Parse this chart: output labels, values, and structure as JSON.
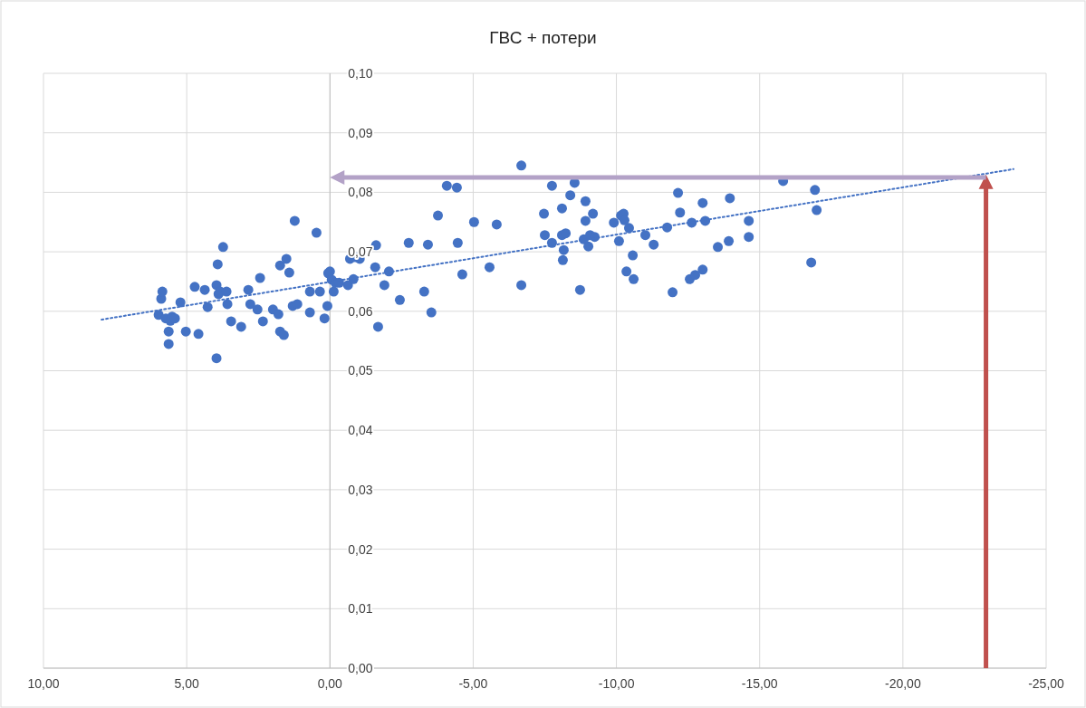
{
  "chart_data": {
    "type": "scatter",
    "title": "ГВС + потери",
    "marker": "circle",
    "grid": true,
    "xlim": [
      10,
      -25
    ],
    "ylim": [
      0,
      0.1
    ],
    "xticks": [
      {
        "value": 10,
        "label": "10,00"
      },
      {
        "value": 5,
        "label": "5,00"
      },
      {
        "value": 0,
        "label": "0,00"
      },
      {
        "value": -5,
        "label": "-5,00"
      },
      {
        "value": -10,
        "label": "-10,00"
      },
      {
        "value": -15,
        "label": "-15,00"
      },
      {
        "value": -20,
        "label": "-20,00"
      },
      {
        "value": -25,
        "label": "-25,00"
      }
    ],
    "yticks": [
      {
        "value": 0,
        "label": "0,00"
      },
      {
        "value": 0.01,
        "label": "0,01"
      },
      {
        "value": 0.02,
        "label": "0,02"
      },
      {
        "value": 0.03,
        "label": "0,03"
      },
      {
        "value": 0.04,
        "label": "0,04"
      },
      {
        "value": 0.05,
        "label": "0,05"
      },
      {
        "value": 0.06,
        "label": "0,06"
      },
      {
        "value": 0.07,
        "label": "0,07"
      },
      {
        "value": 0.08,
        "label": "0,08"
      },
      {
        "value": 0.09,
        "label": "0,09"
      },
      {
        "value": 0.1,
        "label": "0,10"
      }
    ],
    "series": [
      {
        "color": "#4472c4",
        "x": [
          5.98,
          5.89,
          5.85,
          5.73,
          5.63,
          5.63,
          5.57,
          5.51,
          5.41,
          5.22,
          5.03,
          4.72,
          4.59,
          4.37,
          4.27,
          3.96,
          3.92,
          3.96,
          3.89,
          3.83,
          3.73,
          3.61,
          3.58,
          3.45,
          3.1,
          2.85,
          2.78,
          2.53,
          2.44,
          2.34,
          1.99,
          1.8,
          1.74,
          1.74,
          1.61,
          1.52,
          1.42,
          1.23,
          1.3,
          1.14,
          0.7,
          0.7,
          0.47,
          0.35,
          0.19,
          0.09,
          0.06,
          0.0,
          -0.06,
          -0.13,
          -0.19,
          -0.32,
          -0.63,
          -0.7,
          -0.82,
          -0.89,
          -1.04,
          -1.58,
          -1.61,
          -1.68,
          -1.9,
          -2.06,
          -2.44,
          -2.75,
          -3.29,
          -3.42,
          -3.54,
          -3.77,
          -4.08,
          -4.43,
          -4.46,
          -4.62,
          -5.03,
          -5.57,
          -5.82,
          -6.68,
          -6.68,
          -7.47,
          -7.5,
          -7.75,
          -7.75,
          -8.1,
          -8.1,
          -8.13,
          -8.16,
          -8.23,
          -8.39,
          -8.54,
          -8.73,
          -8.86,
          -8.92,
          -8.92,
          -9.02,
          -9.08,
          -9.24,
          -9.18,
          -9.91,
          -10.09,
          -10.16,
          -10.25,
          -10.28,
          -10.35,
          -10.44,
          -10.57,
          -10.6,
          -11.01,
          -11.3,
          -11.77,
          -11.96,
          -12.15,
          -12.22,
          -12.56,
          -12.63,
          -12.75,
          -13.01,
          -13.01,
          -13.1,
          -13.54,
          -13.92,
          -13.96,
          -14.62,
          -14.62,
          -15.82,
          -16.8,
          -16.93,
          -16.99
        ],
        "values": [
          0.0594,
          0.0621,
          0.0633,
          0.0588,
          0.0566,
          0.0545,
          0.0584,
          0.0591,
          0.0588,
          0.0615,
          0.0566,
          0.0641,
          0.0562,
          0.0636,
          0.0607,
          0.0521,
          0.0679,
          0.0644,
          0.0629,
          0.0633,
          0.0708,
          0.0633,
          0.0612,
          0.0583,
          0.0574,
          0.0636,
          0.0612,
          0.0603,
          0.0656,
          0.0583,
          0.0603,
          0.0595,
          0.0677,
          0.0566,
          0.056,
          0.0688,
          0.0665,
          0.0752,
          0.0609,
          0.0612,
          0.0633,
          0.0598,
          0.0732,
          0.0633,
          0.0588,
          0.0609,
          0.0664,
          0.0667,
          0.0653,
          0.0633,
          0.0648,
          0.0648,
          0.0644,
          0.0688,
          0.0654,
          0.0691,
          0.0688,
          0.0674,
          0.0711,
          0.0574,
          0.0644,
          0.0667,
          0.0619,
          0.0715,
          0.0633,
          0.0712,
          0.0598,
          0.0761,
          0.0811,
          0.0808,
          0.0715,
          0.0662,
          0.075,
          0.0674,
          0.0746,
          0.0845,
          0.0644,
          0.0764,
          0.0728,
          0.0811,
          0.0715,
          0.0773,
          0.0728,
          0.0686,
          0.0703,
          0.0731,
          0.0795,
          0.0816,
          0.0636,
          0.0721,
          0.0785,
          0.0752,
          0.0709,
          0.0728,
          0.0725,
          0.0764,
          0.0749,
          0.0718,
          0.0761,
          0.0764,
          0.0753,
          0.0667,
          0.074,
          0.0694,
          0.0654,
          0.0728,
          0.0712,
          0.0741,
          0.0632,
          0.0799,
          0.0766,
          0.0654,
          0.0749,
          0.0661,
          0.067,
          0.0782,
          0.0752,
          0.0708,
          0.0718,
          0.079,
          0.0725,
          0.0752,
          0.0819,
          0.0682,
          0.0804,
          0.077
        ]
      },
      {
        "type": "line",
        "color": "#4472c4",
        "line_style": "dotted",
        "marker": "none",
        "x": [
          7.97,
          -23.86
        ],
        "values": [
          0.0586,
          0.0839
        ]
      }
    ]
  }
}
